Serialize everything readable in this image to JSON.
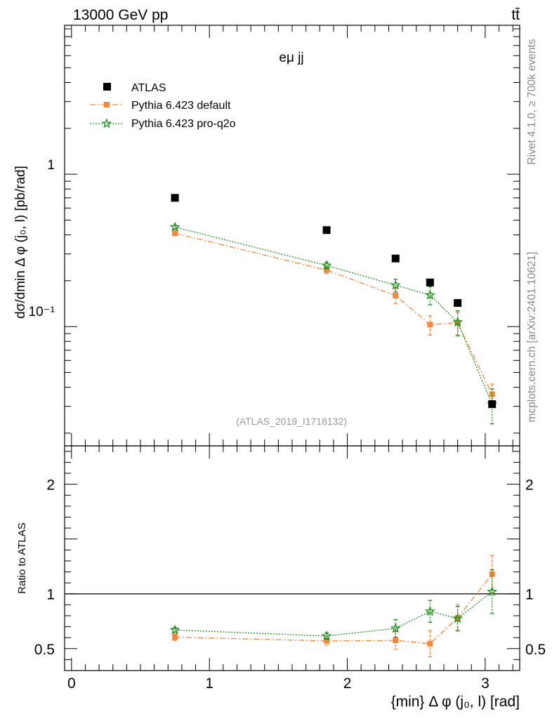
{
  "header": {
    "energy_label": "13000 GeV pp",
    "process_label": "tt̄"
  },
  "side_labels": {
    "rivet": "Rivet 4.1.0, ≥ 700k events",
    "source": "mcplots.cern.ch [arXiv:2401.10621]"
  },
  "chart_data": [
    {
      "type": "scatter",
      "panel": "main",
      "title": "eμ jj",
      "ylabel": "dσ/dmin Δ φ (j₀, l) [pb/rad]",
      "yscale": "log",
      "xlim": [
        -0.05,
        3.25
      ],
      "ylim": [
        0.0165,
        9.5
      ],
      "y_tick_labels": [
        "1",
        "10⁻¹"
      ],
      "watermark": "(ATLAS_2019_I1718132)",
      "x": [
        0.75,
        1.85,
        2.35,
        2.6,
        2.8,
        3.05
      ],
      "series": [
        {
          "name": "ATLAS",
          "style": "data",
          "color": "#000000",
          "values": [
            0.7,
            0.43,
            0.28,
            0.195,
            0.143,
            0.031
          ],
          "errors": [
            0,
            0,
            0,
            0,
            0,
            0
          ]
        },
        {
          "name": "Pythia 6.423 default",
          "style": "dashdot",
          "color": "#f5883a",
          "values": [
            0.41,
            0.235,
            0.16,
            0.103,
            0.106,
            0.036
          ],
          "errors": [
            0.015,
            0.012,
            0.018,
            0.015,
            0.018,
            0.006
          ]
        },
        {
          "name": "Pythia 6.423 pro-q2o",
          "style": "dotted",
          "color": "#1e8c1e",
          "values": [
            0.45,
            0.252,
            0.187,
            0.161,
            0.107,
            0.031
          ],
          "errors": [
            0.012,
            0.012,
            0.018,
            0.022,
            0.02,
            0.008
          ]
        }
      ]
    },
    {
      "type": "scatter",
      "panel": "ratio",
      "ylabel": "Ratio to ATLAS",
      "xlabel": "{min} Δ φ (j₀, l) [rad]",
      "xlim": [
        -0.05,
        3.25
      ],
      "ylim": [
        0.3,
        2.35
      ],
      "x_tick_labels": [
        "0",
        "1",
        "2",
        "3"
      ],
      "y_tick_labels": [
        "0.5",
        "1",
        "2"
      ],
      "reference_line": 1,
      "x": [
        0.75,
        1.85,
        2.35,
        2.6,
        2.8,
        3.05
      ],
      "series": [
        {
          "name": "Pythia 6.423 default",
          "style": "dashdot",
          "color": "#f5883a",
          "values": [
            0.605,
            0.57,
            0.575,
            0.545,
            0.78,
            1.18
          ],
          "errors": [
            0.03,
            0.04,
            0.08,
            0.12,
            0.12,
            0.17
          ]
        },
        {
          "name": "Pythia 6.423 pro-q2o",
          "style": "dotted",
          "color": "#1e8c1e",
          "values": [
            0.67,
            0.615,
            0.685,
            0.84,
            0.775,
            1.02
          ],
          "errors": [
            0.02,
            0.03,
            0.08,
            0.1,
            0.11,
            0.2
          ]
        }
      ]
    }
  ]
}
